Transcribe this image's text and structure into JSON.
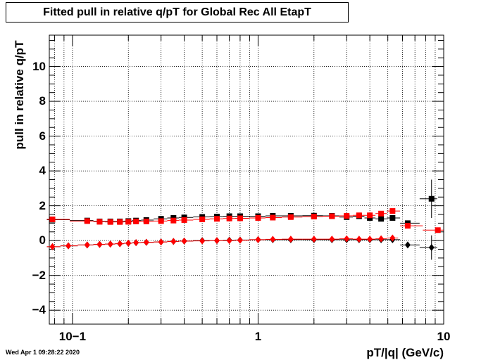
{
  "chart_data": {
    "type": "scatter",
    "title": "Fitted pull in relative q/pT for Global Rec All EtapT",
    "xlabel": "pT/|q| (GeV/c)",
    "ylabel": "pull in relative q/pT",
    "xscale": "log",
    "xlim": [
      0.075,
      10
    ],
    "ylim": [
      -4.8,
      11.8
    ],
    "grid": true,
    "x_ticks": [
      {
        "value": 0.1,
        "label": "10−1"
      },
      {
        "value": 1,
        "label": "1"
      },
      {
        "value": 10,
        "label": "10"
      }
    ],
    "y_ticks": [
      {
        "value": -4,
        "label": "−4"
      },
      {
        "value": -2,
        "label": "−2"
      },
      {
        "value": 0,
        "label": "0"
      },
      {
        "value": 2,
        "label": "2"
      },
      {
        "value": 4,
        "label": "4"
      },
      {
        "value": 6,
        "label": "6"
      },
      {
        "value": 8,
        "label": "8"
      },
      {
        "value": 10,
        "label": "10"
      }
    ],
    "series": [
      {
        "marker": "square",
        "color": "#000000",
        "x": [
          0.078,
          0.12,
          0.14,
          0.16,
          0.18,
          0.2,
          0.22,
          0.25,
          0.3,
          0.35,
          0.4,
          0.5,
          0.6,
          0.7,
          0.8,
          1.0,
          1.2,
          1.5,
          2.0,
          2.5,
          3.0,
          3.5,
          4.0,
          4.6,
          5.3,
          6.4,
          8.6
        ],
        "y": [
          1.2,
          1.15,
          1.1,
          1.1,
          1.1,
          1.12,
          1.15,
          1.18,
          1.25,
          1.3,
          1.33,
          1.36,
          1.38,
          1.4,
          1.4,
          1.4,
          1.42,
          1.42,
          1.43,
          1.42,
          1.35,
          1.4,
          1.3,
          1.25,
          1.3,
          1.0,
          2.4
        ],
        "yerr": [
          0.05,
          0.05,
          0.05,
          0.05,
          0.05,
          0.05,
          0.05,
          0.05,
          0.05,
          0.05,
          0.05,
          0.05,
          0.05,
          0.05,
          0.05,
          0.05,
          0.05,
          0.05,
          0.05,
          0.05,
          0.05,
          0.05,
          0.05,
          0.05,
          0.05,
          0.05,
          1.1
        ]
      },
      {
        "marker": "square",
        "color": "#ff0000",
        "x": [
          0.078,
          0.12,
          0.14,
          0.16,
          0.18,
          0.2,
          0.22,
          0.25,
          0.3,
          0.35,
          0.4,
          0.5,
          0.6,
          0.7,
          0.8,
          1.0,
          1.2,
          1.5,
          2.0,
          2.5,
          3.0,
          3.5,
          4.0,
          4.6,
          5.3,
          6.4,
          9.3
        ],
        "y": [
          1.22,
          1.12,
          1.08,
          1.07,
          1.07,
          1.08,
          1.1,
          1.1,
          1.12,
          1.15,
          1.18,
          1.22,
          1.25,
          1.27,
          1.28,
          1.3,
          1.32,
          1.35,
          1.38,
          1.4,
          1.42,
          1.45,
          1.45,
          1.55,
          1.7,
          0.85,
          0.6
        ],
        "yerr": [
          0.05,
          0.05,
          0.05,
          0.05,
          0.05,
          0.05,
          0.05,
          0.05,
          0.05,
          0.05,
          0.05,
          0.05,
          0.05,
          0.05,
          0.05,
          0.05,
          0.05,
          0.05,
          0.05,
          0.05,
          0.05,
          0.05,
          0.05,
          0.05,
          0.05,
          0.05,
          0.05
        ]
      },
      {
        "marker": "diamond",
        "color": "#000000",
        "x": [
          0.078,
          0.095,
          0.12,
          0.14,
          0.16,
          0.18,
          0.2,
          0.22,
          0.25,
          0.3,
          0.35,
          0.4,
          0.5,
          0.6,
          0.7,
          0.8,
          1.0,
          1.2,
          1.5,
          2.0,
          2.5,
          3.0,
          3.5,
          4.0,
          4.6,
          5.3,
          6.4,
          8.6
        ],
        "y": [
          -0.35,
          -0.3,
          -0.25,
          -0.22,
          -0.2,
          -0.18,
          -0.15,
          -0.12,
          -0.1,
          -0.08,
          -0.05,
          -0.03,
          0.0,
          0.0,
          0.02,
          0.03,
          0.05,
          0.05,
          0.05,
          0.05,
          0.05,
          0.05,
          0.05,
          0.05,
          0.05,
          0.05,
          -0.25,
          -0.4
        ],
        "yerr": [
          0.04,
          0.04,
          0.04,
          0.04,
          0.04,
          0.04,
          0.04,
          0.04,
          0.04,
          0.04,
          0.04,
          0.04,
          0.04,
          0.04,
          0.04,
          0.04,
          0.04,
          0.04,
          0.04,
          0.04,
          0.04,
          0.04,
          0.04,
          0.04,
          0.04,
          0.04,
          0.04,
          0.7
        ]
      },
      {
        "marker": "diamond",
        "color": "#ff0000",
        "x": [
          0.078,
          0.095,
          0.12,
          0.14,
          0.16,
          0.18,
          0.2,
          0.22,
          0.25,
          0.3,
          0.35,
          0.4,
          0.5,
          0.6,
          0.7,
          0.8,
          1.0,
          1.2,
          1.5,
          2.0,
          2.5,
          3.0,
          3.5,
          4.0,
          4.6,
          5.3
        ],
        "y": [
          -0.35,
          -0.3,
          -0.25,
          -0.22,
          -0.2,
          -0.18,
          -0.15,
          -0.12,
          -0.1,
          -0.08,
          -0.05,
          -0.03,
          -0.02,
          0.0,
          0.0,
          0.02,
          0.05,
          0.07,
          0.08,
          0.08,
          0.08,
          0.1,
          0.08,
          0.08,
          0.1,
          0.15
        ],
        "yerr": [
          0.04,
          0.04,
          0.04,
          0.04,
          0.04,
          0.04,
          0.04,
          0.04,
          0.04,
          0.04,
          0.04,
          0.04,
          0.04,
          0.04,
          0.04,
          0.04,
          0.04,
          0.04,
          0.04,
          0.04,
          0.04,
          0.04,
          0.04,
          0.04,
          0.04,
          0.04
        ]
      }
    ]
  },
  "footer": {
    "timestamp": "Wed Apr  1 09:28:22 2020"
  }
}
